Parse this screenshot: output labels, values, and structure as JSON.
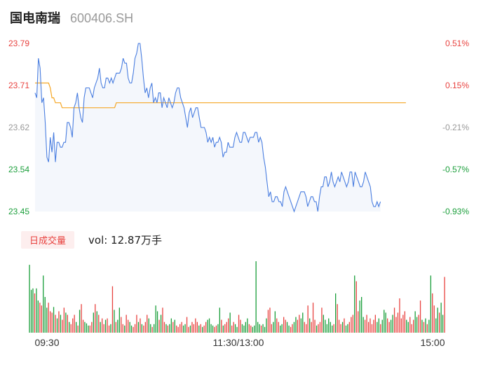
{
  "header": {
    "name": "国电南瑞",
    "code": "600406.SH"
  },
  "volume_panel": {
    "tag": "日成交量",
    "text": "vol: 12.87万手"
  },
  "colors": {
    "up": "#e8423f",
    "down": "#1a9e3a",
    "neutral": "#999999",
    "price_line": "#4a7ee0",
    "avg_line": "#f5a623",
    "fill": "#f4f7fc"
  },
  "chart_data": [
    {
      "type": "line",
      "title": "",
      "y_left_ticks": [
        "23.79",
        "23.71",
        "23.62",
        "23.54",
        "23.45"
      ],
      "y_right_ticks": [
        "0.51%",
        "0.15%",
        "-0.21%",
        "-0.57%",
        "-0.93%"
      ],
      "ylim": [
        23.45,
        23.79
      ],
      "x_ticks": [
        "09:30",
        "11:30/13:00",
        "15:00"
      ],
      "x_range": [
        0,
        241
      ],
      "series": [
        {
          "values": [
            23.69,
            23.68,
            23.76,
            23.74,
            23.67,
            23.68,
            23.63,
            23.56,
            23.55,
            23.6,
            23.57,
            23.61,
            23.55,
            23.59,
            23.59,
            23.58,
            23.58,
            23.59,
            23.59,
            23.63,
            23.63,
            23.62,
            23.6,
            23.66,
            23.67,
            23.69,
            23.66,
            23.64,
            23.63,
            23.68,
            23.7,
            23.7,
            23.7,
            23.69,
            23.68,
            23.7,
            23.71,
            23.72,
            23.74,
            23.71,
            23.7,
            23.7,
            23.72,
            23.72,
            23.71,
            23.72,
            23.71,
            23.72,
            23.73,
            23.73,
            23.73,
            23.74,
            23.76,
            23.75,
            23.75,
            23.72,
            23.71,
            23.71,
            23.73,
            23.76,
            23.77,
            23.79,
            23.79,
            23.76,
            23.72,
            23.69,
            23.7,
            23.68,
            23.7,
            23.71,
            23.67,
            23.68,
            23.67,
            23.69,
            23.69,
            23.66,
            23.68,
            23.67,
            23.66,
            23.68,
            23.67,
            23.66,
            23.67,
            23.69,
            23.7,
            23.7,
            23.68,
            23.67,
            23.66,
            23.64,
            23.62,
            23.65,
            23.66,
            23.64,
            23.65,
            23.66,
            23.66,
            23.64,
            23.62,
            23.62,
            23.62,
            23.61,
            23.59,
            23.6,
            23.59,
            23.6,
            23.58,
            23.59,
            23.59,
            23.6,
            23.59,
            23.56,
            23.57,
            23.57,
            23.59,
            23.58,
            23.58,
            23.58,
            23.6,
            23.61,
            23.6,
            23.59,
            23.59,
            23.61,
            23.61,
            23.6,
            23.59,
            23.6,
            23.6,
            23.6,
            23.61,
            23.61,
            23.59,
            23.6,
            23.59,
            23.56,
            23.54,
            23.51,
            23.48,
            23.49,
            23.47,
            23.47,
            23.48,
            23.48,
            23.47,
            23.47,
            23.46,
            23.49,
            23.5,
            23.49,
            23.48,
            23.47,
            23.46,
            23.45,
            23.46,
            23.47,
            23.48,
            23.49,
            23.49,
            23.49,
            23.48,
            23.46,
            23.47,
            23.48,
            23.48,
            23.47,
            23.47,
            23.45,
            23.48,
            23.5,
            23.5,
            23.52,
            23.52,
            23.5,
            23.51,
            23.53,
            23.51,
            23.5,
            23.51,
            23.52,
            23.51,
            23.53,
            23.52,
            23.51,
            23.5,
            23.51,
            23.53,
            23.53,
            23.5,
            23.53,
            23.52,
            23.51,
            23.5,
            23.5,
            23.51,
            23.53,
            23.52,
            23.51,
            23.5,
            23.47,
            23.46,
            23.46,
            23.47,
            23.46,
            23.47
          ],
          "color": "#4a7ee0"
        },
        {
          "values": [
            23.71,
            23.71,
            23.71,
            23.71,
            23.71,
            23.71,
            23.71,
            23.71,
            23.71,
            23.7,
            23.68,
            23.68,
            23.67,
            23.67,
            23.67,
            23.67,
            23.66,
            23.66,
            23.66,
            23.66,
            23.66,
            23.66,
            23.66,
            23.66,
            23.66,
            23.66,
            23.66,
            23.66,
            23.66,
            23.66,
            23.66,
            23.66,
            23.66,
            23.66,
            23.66,
            23.66,
            23.66,
            23.66,
            23.66,
            23.66,
            23.66,
            23.66,
            23.66,
            23.66,
            23.66,
            23.66,
            23.66,
            23.66,
            23.67,
            23.67,
            23.67,
            23.67,
            23.67,
            23.67,
            23.67,
            23.67,
            23.67,
            23.67,
            23.67,
            23.67,
            23.67,
            23.67,
            23.67,
            23.67,
            23.67,
            23.67,
            23.67,
            23.67,
            23.67,
            23.67,
            23.67,
            23.67,
            23.67,
            23.67,
            23.67,
            23.67,
            23.67,
            23.67,
            23.67,
            23.67,
            23.67,
            23.67,
            23.67,
            23.67,
            23.67,
            23.67,
            23.67,
            23.67,
            23.67,
            23.67,
            23.67,
            23.67,
            23.67,
            23.67,
            23.67,
            23.67,
            23.67,
            23.67,
            23.67,
            23.67,
            23.67,
            23.67,
            23.67,
            23.67,
            23.67,
            23.67,
            23.67,
            23.67,
            23.67,
            23.67,
            23.67,
            23.67,
            23.67,
            23.67,
            23.67,
            23.67,
            23.67,
            23.67,
            23.67,
            23.67,
            23.67,
            23.67,
            23.67,
            23.67,
            23.67,
            23.67,
            23.67,
            23.67,
            23.67,
            23.67,
            23.67,
            23.67,
            23.67,
            23.67,
            23.67,
            23.67,
            23.67,
            23.67,
            23.67,
            23.67,
            23.67,
            23.67,
            23.67,
            23.67,
            23.67,
            23.67,
            23.67,
            23.67,
            23.67,
            23.67,
            23.67,
            23.67,
            23.67,
            23.67,
            23.67,
            23.67,
            23.67,
            23.67,
            23.67,
            23.67,
            23.67,
            23.67,
            23.67,
            23.67,
            23.67,
            23.67,
            23.67,
            23.67,
            23.67,
            23.67,
            23.67,
            23.67,
            23.67,
            23.67,
            23.67,
            23.67,
            23.67,
            23.67,
            23.67,
            23.67,
            23.67,
            23.67,
            23.67,
            23.67,
            23.67,
            23.67,
            23.67,
            23.67,
            23.67,
            23.67,
            23.67,
            23.67,
            23.67,
            23.67,
            23.67,
            23.67,
            23.67,
            23.67,
            23.67,
            23.67,
            23.67,
            23.67,
            23.67,
            23.67,
            23.67,
            23.67,
            23.67,
            23.67,
            23.67,
            23.67,
            23.67,
            23.67,
            23.67,
            23.67,
            23.67,
            23.67,
            23.67,
            23.67,
            23.67,
            23.67
          ],
          "color": "#f5a623"
        }
      ]
    },
    {
      "type": "bar",
      "title": "",
      "x_ticks": [
        "09:30",
        "11:30/13:00",
        "15:00"
      ],
      "series": [
        {
          "values": [
            0.95,
            0.6,
            0.62,
            0.55,
            0.62,
            0.45,
            0.42,
            0.38,
            0.8,
            0.5,
            0.35,
            0.42,
            0.3,
            0.28,
            0.36,
            0.25,
            0.2,
            0.3,
            0.25,
            0.18,
            0.35,
            0.28,
            0.25,
            0.15,
            0.12,
            0.2,
            0.25,
            0.15,
            0.1,
            0.32,
            0.4,
            0.18,
            0.15,
            0.13,
            0.1,
            0.1,
            0.15,
            0.28,
            0.4,
            0.3,
            0.25,
            0.15,
            0.2,
            0.12,
            0.18,
            0.2,
            0.1,
            0.12,
            0.65,
            0.32,
            0.15,
            0.18,
            0.35,
            0.22,
            0.12,
            0.1,
            0.25,
            0.18,
            0.15,
            0.1,
            0.08,
            0.12,
            0.25,
            0.15,
            0.2,
            0.12,
            0.1,
            0.15,
            0.25,
            0.2,
            0.12,
            0.08,
            0.12,
            0.38,
            0.3,
            0.18,
            0.25,
            0.35,
            0.15,
            0.12,
            0.1,
            0.12,
            0.2,
            0.15,
            0.18,
            0.1,
            0.08,
            0.12,
            0.15,
            0.1,
            0.12,
            0.22,
            0.08,
            0.1,
            0.15,
            0.12,
            0.2,
            0.15,
            0.1,
            0.12,
            0.08,
            0.1,
            0.15,
            0.18,
            0.2,
            0.12,
            0.1,
            0.08,
            0.1,
            0.12,
            0.35,
            0.18,
            0.1,
            0.12,
            0.15,
            0.2,
            0.28,
            0.1,
            0.15,
            0.12,
            0.08,
            0.25,
            0.18,
            0.12,
            0.1,
            0.15,
            0.2,
            0.12,
            0.1,
            0.08,
            0.1,
            1.0,
            0.15,
            0.12,
            0.1,
            0.12,
            0.08,
            0.2,
            0.32,
            0.35,
            0.12,
            0.15,
            0.3,
            0.2,
            0.15,
            0.1,
            0.12,
            0.22,
            0.18,
            0.15,
            0.1,
            0.08,
            0.12,
            0.15,
            0.22,
            0.18,
            0.25,
            0.2,
            0.28,
            0.15,
            0.12,
            0.38,
            0.2,
            0.15,
            0.42,
            0.18,
            0.1,
            0.12,
            0.15,
            0.35,
            0.25,
            0.18,
            0.12,
            0.2,
            0.15,
            0.1,
            0.12,
            0.55,
            0.4,
            0.18,
            0.12,
            0.15,
            0.2,
            0.1,
            0.12,
            0.15,
            0.22,
            0.25,
            0.8,
            0.72,
            0.3,
            0.45,
            0.5,
            0.22,
            0.18,
            0.25,
            0.15,
            0.2,
            0.12,
            0.18,
            0.25,
            0.15,
            0.2,
            0.12,
            0.18,
            0.32,
            0.28,
            0.2,
            0.15,
            0.18,
            0.25,
            0.35,
            0.22,
            0.28,
            0.48,
            0.2,
            0.25,
            0.3,
            0.18,
            0.15,
            0.22,
            0.12,
            0.18,
            0.3,
            0.22,
            0.25,
            0.45,
            0.18,
            0.15,
            0.2,
            0.12,
            0.18,
            0.8,
            0.55,
            0.38,
            0.2,
            0.35,
            0.28,
            0.42,
            0.25,
            0.78
          ],
          "colors": [
            "d",
            "d",
            "d",
            "u",
            "d",
            "d",
            "u",
            "u",
            "d",
            "d",
            "d",
            "u",
            "u",
            "u",
            "d",
            "u",
            "d",
            "u",
            "d",
            "u",
            "u",
            "d",
            "u",
            "d",
            "u",
            "u",
            "u",
            "d",
            "u",
            "d",
            "u",
            "u",
            "d",
            "d",
            "d",
            "u",
            "u",
            "d",
            "u",
            "d",
            "u",
            "d",
            "u",
            "u",
            "d",
            "u",
            "u",
            "d",
            "u",
            "d",
            "u",
            "d",
            "d",
            "u",
            "u",
            "d",
            "u",
            "u",
            "d",
            "d",
            "u",
            "u",
            "u",
            "d",
            "u",
            "d",
            "u",
            "u",
            "u",
            "d",
            "d",
            "u",
            "d",
            "d",
            "d",
            "u",
            "d",
            "u",
            "u",
            "d",
            "u",
            "d",
            "d",
            "u",
            "d",
            "u",
            "u",
            "u",
            "u",
            "d",
            "d",
            "u",
            "u",
            "d",
            "u",
            "u",
            "u",
            "u",
            "d",
            "u",
            "d",
            "u",
            "u",
            "d",
            "d",
            "d",
            "d",
            "u",
            "u",
            "d",
            "d",
            "u",
            "d",
            "u",
            "u",
            "u",
            "d",
            "u",
            "u",
            "d",
            "d",
            "u",
            "u",
            "d",
            "d",
            "d",
            "d",
            "u",
            "u",
            "d",
            "d",
            "d",
            "d",
            "d",
            "u",
            "d",
            "d",
            "d",
            "u",
            "u",
            "u",
            "d",
            "d",
            "u",
            "u",
            "d",
            "d",
            "u",
            "u",
            "d",
            "d",
            "u",
            "u",
            "d",
            "d",
            "u",
            "u",
            "d",
            "d",
            "u",
            "u",
            "u",
            "d",
            "u",
            "u",
            "u",
            "d",
            "u",
            "u",
            "u",
            "d",
            "d",
            "d",
            "d",
            "d",
            "d",
            "u",
            "d",
            "u",
            "u",
            "u",
            "d",
            "u",
            "d",
            "d",
            "u",
            "u",
            "u",
            "d",
            "u",
            "u",
            "d",
            "d",
            "d",
            "u",
            "u",
            "u",
            "u",
            "u",
            "u",
            "u",
            "d",
            "d",
            "u",
            "d",
            "d",
            "d",
            "u",
            "u",
            "d",
            "d",
            "u",
            "u",
            "u",
            "u",
            "u",
            "u",
            "u",
            "d",
            "d",
            "u",
            "u",
            "u",
            "d",
            "d",
            "u",
            "u",
            "d",
            "u",
            "d",
            "u",
            "d",
            "d",
            "u",
            "u",
            "d",
            "d",
            "u",
            "d",
            "d",
            "u",
            "d",
            "u"
          ]
        }
      ]
    }
  ]
}
